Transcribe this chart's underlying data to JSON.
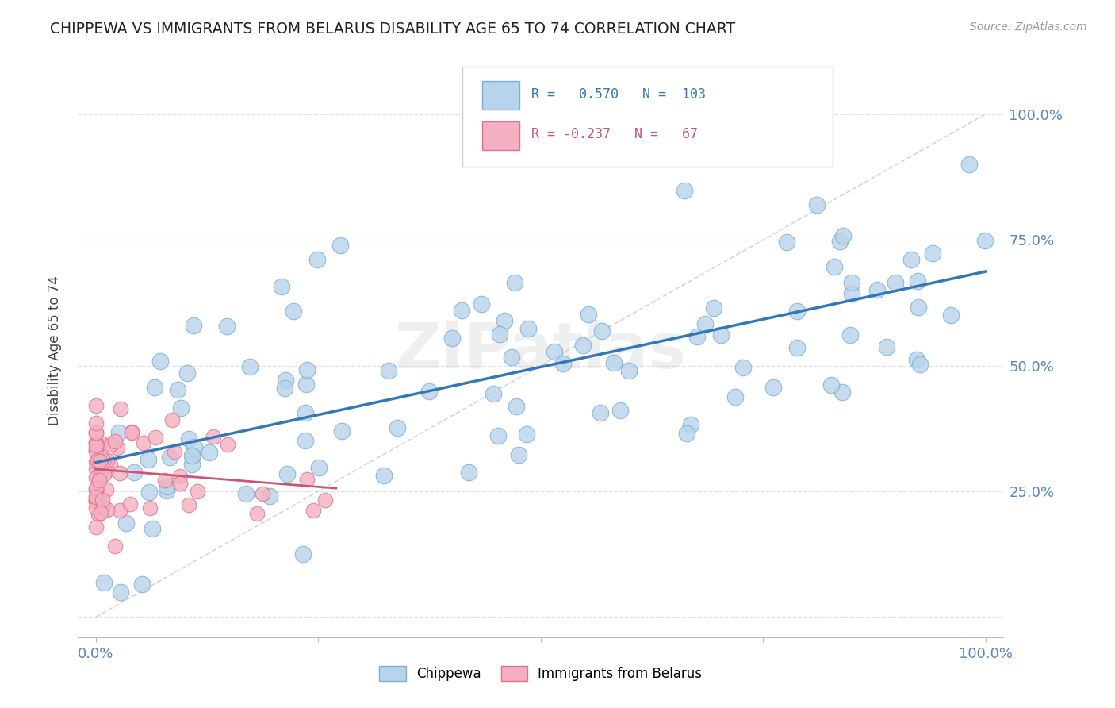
{
  "title": "CHIPPEWA VS IMMIGRANTS FROM BELARUS DISABILITY AGE 65 TO 74 CORRELATION CHART",
  "source": "Source: ZipAtlas.com",
  "ylabel": "Disability Age 65 to 74",
  "watermark": "ZIPatlas",
  "chippewa_color": "#b8d4ea",
  "chippewa_edge": "#7aaed4",
  "belarus_color": "#f4b0c0",
  "belarus_edge": "#e07090",
  "trend_blue": "#3377bb",
  "trend_pink": "#cc5577",
  "trend_dashed": "#cccccc",
  "R_chippewa": 0.57,
  "N_chippewa": 103,
  "R_belarus": -0.237,
  "N_belarus": 67,
  "legend1_label": "Chippewa",
  "legend2_label": "Immigrants from Belarus",
  "bg_color": "#ffffff",
  "grid_color": "#dddddd",
  "title_color": "#222222",
  "axis_color": "#5588bb",
  "legend_r1_color": "#3377bb",
  "legend_r2_color": "#cc5577"
}
